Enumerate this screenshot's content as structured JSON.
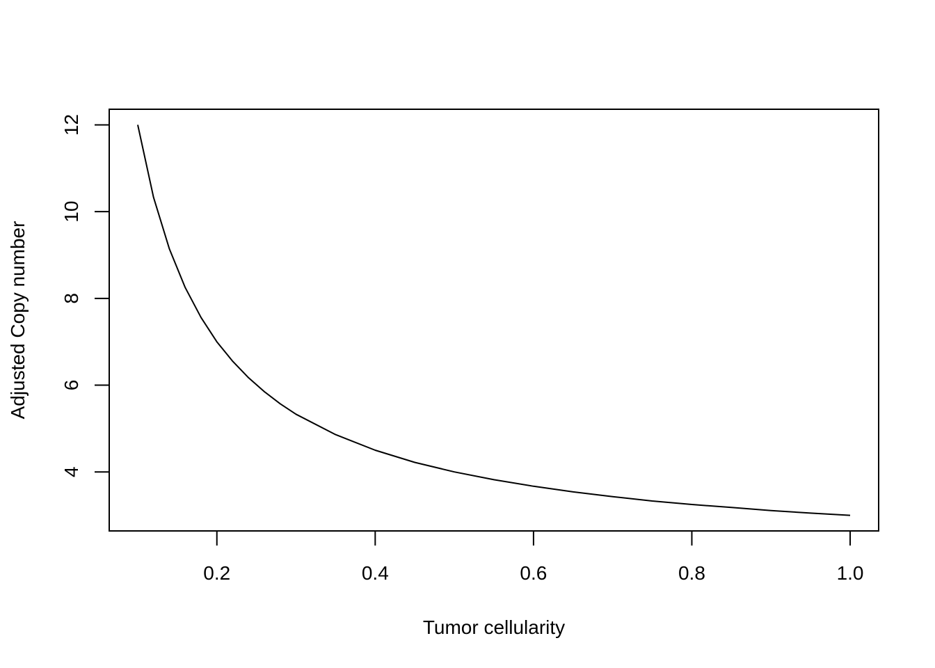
{
  "chart_data": {
    "type": "line",
    "title": "",
    "xlabel": "Tumor cellularity",
    "ylabel": "Adjusted Copy number",
    "xlim": [
      0.064,
      1.036
    ],
    "ylim": [
      2.64,
      12.36
    ],
    "xticks": [
      0.2,
      0.4,
      0.6,
      0.8,
      1.0
    ],
    "xtick_labels": [
      "0.2",
      "0.4",
      "0.6",
      "0.8",
      "1.0"
    ],
    "yticks": [
      4,
      6,
      8,
      10,
      12
    ],
    "ytick_labels": [
      "4",
      "6",
      "8",
      "10",
      "12"
    ],
    "grid": false,
    "series": [
      {
        "color": "#000000",
        "x": [
          0.1,
          0.12,
          0.14,
          0.16,
          0.18,
          0.2,
          0.22,
          0.24,
          0.26,
          0.28,
          0.3,
          0.35,
          0.4,
          0.45,
          0.5,
          0.55,
          0.6,
          0.65,
          0.7,
          0.75,
          0.8,
          0.85,
          0.9,
          0.95,
          1.0
        ],
        "y": [
          12.0,
          10.33,
          9.14,
          8.25,
          7.56,
          7.0,
          6.55,
          6.17,
          5.85,
          5.57,
          5.33,
          4.86,
          4.5,
          4.22,
          4.0,
          3.82,
          3.67,
          3.54,
          3.43,
          3.33,
          3.25,
          3.18,
          3.11,
          3.05,
          3.0
        ]
      }
    ]
  }
}
